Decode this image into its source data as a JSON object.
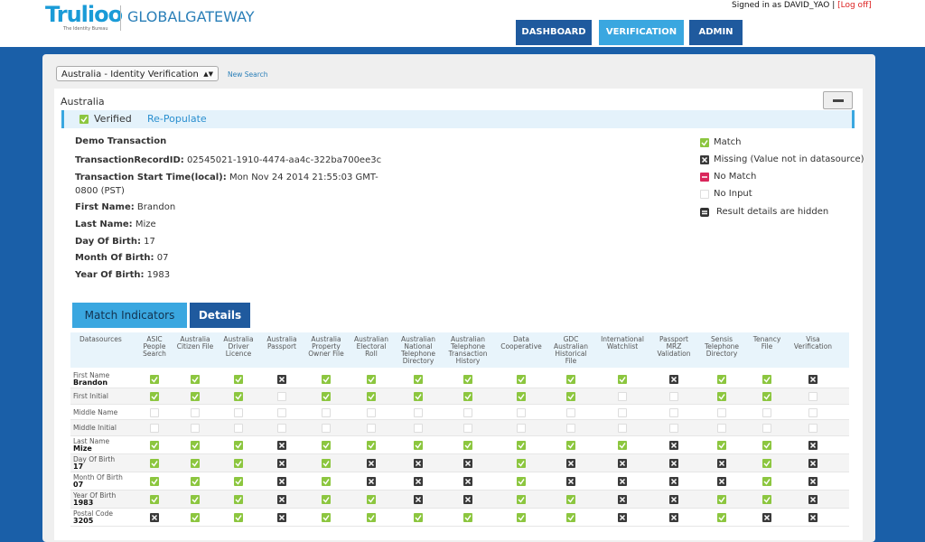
{
  "header": {
    "logo": "Trulioo",
    "tagline": "The Identity Bureau",
    "product": "GLOBALGATEWAY",
    "signed_in": "Signed in as DAVID_YAO | ",
    "log_off": "[Log off]"
  },
  "nav": {
    "items": [
      "DASHBOARD",
      "VERIFICATION",
      "ADMIN"
    ],
    "active": 1
  },
  "search": {
    "selected": "Australia - Identity Verification",
    "new_search": "New Search"
  },
  "panel": {
    "title": "Australia",
    "status": "Verified",
    "repopulate": "Re-Populate"
  },
  "transaction": {
    "title": "Demo Transaction",
    "fields": [
      {
        "label": "TransactionRecordID:",
        "value": "02545021-1910-4474-aa4c-322ba700ee3c"
      },
      {
        "label": "Transaction Start Time(local):",
        "value": "Mon Nov 24 2014 21:55:03 GMT-0800 (PST)"
      },
      {
        "label": "First Name:",
        "value": "Brandon"
      },
      {
        "label": "Last Name:",
        "value": "Mize"
      },
      {
        "label": "Day Of Birth:",
        "value": "17"
      },
      {
        "label": "Month Of Birth:",
        "value": "07"
      },
      {
        "label": "Year Of Birth:",
        "value": "1983"
      }
    ]
  },
  "legend": [
    {
      "icon": "match",
      "label": "Match"
    },
    {
      "icon": "missing",
      "label": "Missing (Value not in datasource)"
    },
    {
      "icon": "nomatch",
      "label": "No Match"
    },
    {
      "icon": "noinput",
      "label": "No Input"
    },
    {
      "icon": "hidden",
      "label": "Result details are hidden"
    }
  ],
  "tabs": {
    "items": [
      "Match Indicators",
      "Details"
    ],
    "active": 0
  },
  "table": {
    "header": "Datasources",
    "columns": [
      "ASIC People Search",
      "Australia Citizen File",
      "Australia Driver Licence",
      "Australia Passport",
      "Australia Property Owner File",
      "Australian Electoral Roll",
      "Australian National Telephone Directory",
      "Australian Telephone Transaction History",
      "Data Cooperative",
      "GDC Australian Historical File",
      "International Watchlist",
      "Passport MRZ Validation",
      "Sensis Telephone Directory",
      "Tenancy File",
      "Visa Verification"
    ],
    "rows": [
      {
        "label": "First Name",
        "value": "Brandon",
        "cells": [
          "match",
          "match",
          "match",
          "missing",
          "match",
          "match",
          "match",
          "match",
          "match",
          "match",
          "match",
          "missing",
          "match",
          "match",
          "missing"
        ]
      },
      {
        "label": "First Initial",
        "cells": [
          "match",
          "match",
          "match",
          "noinput",
          "match",
          "match",
          "match",
          "match",
          "match",
          "match",
          "noinput",
          "noinput",
          "match",
          "match",
          "noinput"
        ]
      },
      {
        "label": "Middle Name",
        "cells": [
          "noinput",
          "noinput",
          "noinput",
          "noinput",
          "noinput",
          "noinput",
          "noinput",
          "noinput",
          "noinput",
          "noinput",
          "noinput",
          "noinput",
          "noinput",
          "noinput",
          "noinput"
        ]
      },
      {
        "label": "Middle Initial",
        "cells": [
          "noinput",
          "noinput",
          "noinput",
          "noinput",
          "noinput",
          "noinput",
          "noinput",
          "noinput",
          "noinput",
          "noinput",
          "noinput",
          "noinput",
          "noinput",
          "noinput",
          "noinput"
        ]
      },
      {
        "label": "Last Name",
        "value": "Mize",
        "cells": [
          "match",
          "match",
          "match",
          "missing",
          "match",
          "match",
          "match",
          "match",
          "match",
          "match",
          "match",
          "missing",
          "match",
          "match",
          "missing"
        ]
      },
      {
        "label": "Day Of Birth",
        "value": "17",
        "cells": [
          "match",
          "match",
          "match",
          "missing",
          "match",
          "missing",
          "missing",
          "missing",
          "match",
          "missing",
          "missing",
          "missing",
          "missing",
          "match",
          "missing"
        ]
      },
      {
        "label": "Month Of Birth",
        "value": "07",
        "cells": [
          "match",
          "match",
          "match",
          "missing",
          "match",
          "missing",
          "missing",
          "missing",
          "match",
          "missing",
          "missing",
          "missing",
          "missing",
          "match",
          "missing"
        ]
      },
      {
        "label": "Year Of Birth",
        "value": "1983",
        "cells": [
          "match",
          "match",
          "match",
          "missing",
          "match",
          "match",
          "missing",
          "missing",
          "match",
          "match",
          "missing",
          "missing",
          "match",
          "match",
          "missing"
        ]
      },
      {
        "label": "Postal Code",
        "value": "3205",
        "cells": [
          "missing",
          "match",
          "match",
          "missing",
          "match",
          "match",
          "match",
          "match",
          "match",
          "match",
          "missing",
          "missing",
          "match",
          "missing",
          "missing"
        ]
      }
    ]
  }
}
